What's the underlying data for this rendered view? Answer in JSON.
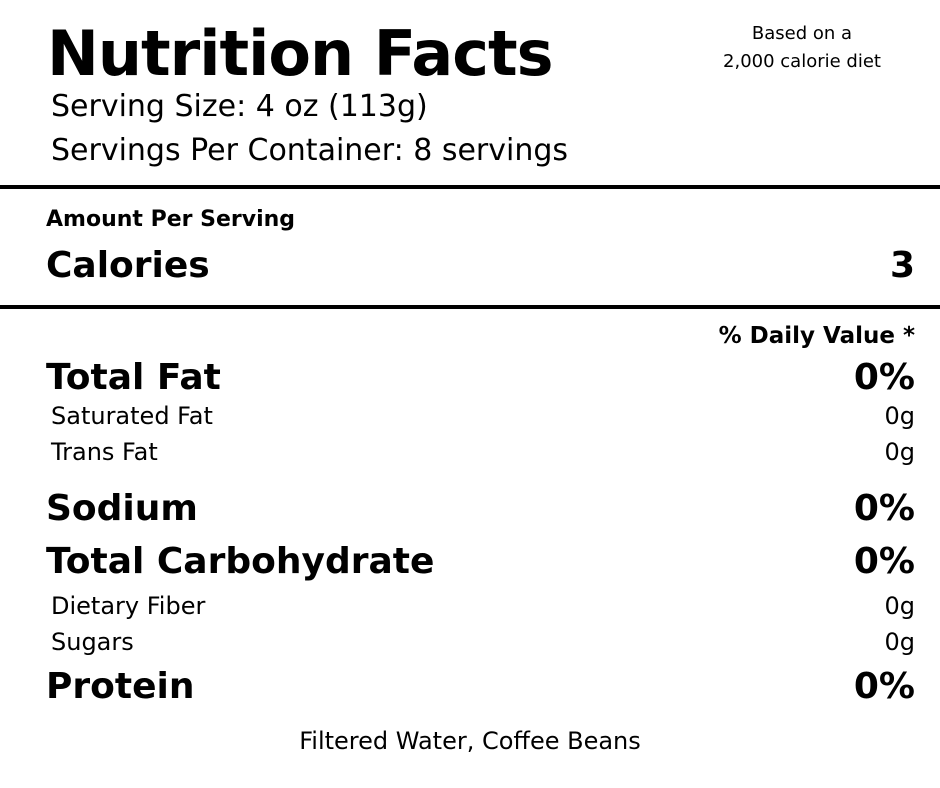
{
  "header": {
    "title": "Nutrition Facts",
    "diet_note_line1": "Based on a",
    "diet_note_line2": "2,000 calorie diet",
    "serving_size": "Serving Size: 4 oz (113g)",
    "servings_per_container": "Servings Per Container: 8 servings"
  },
  "amount_section": {
    "label": "Amount Per Serving",
    "calories_label": "Calories",
    "calories_value": "3"
  },
  "daily_value_header": "% Daily Value *",
  "nutrients": {
    "total_fat": {
      "label": "Total Fat",
      "value": "0%"
    },
    "saturated_fat": {
      "label": "Saturated Fat",
      "value": "0g"
    },
    "trans_fat": {
      "label": "Trans Fat",
      "value": "0g"
    },
    "sodium": {
      "label": "Sodium",
      "value": "0%"
    },
    "total_carbohydrate": {
      "label": "Total Carbohydrate",
      "value": "0%"
    },
    "dietary_fiber": {
      "label": "Dietary Fiber",
      "value": "0g"
    },
    "sugars": {
      "label": "Sugars",
      "value": "0g"
    },
    "protein": {
      "label": "Protein",
      "value": "0%"
    }
  },
  "ingredients": "Filtered Water, Coffee Beans"
}
